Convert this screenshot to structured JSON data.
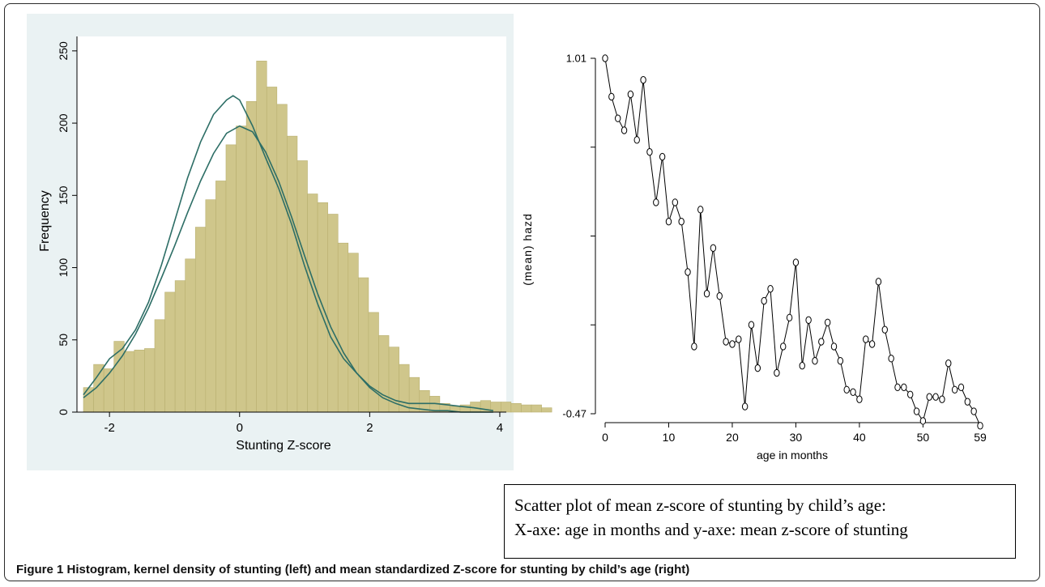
{
  "chart_data": [
    {
      "type": "bar",
      "xlabel": "Stunting Z-score",
      "ylabel": "Frequency",
      "xlim": [
        -2.5,
        4.1
      ],
      "ylim": [
        0,
        260
      ],
      "xticks": [
        "-2",
        "0",
        "2",
        "4"
      ],
      "yticks": [
        "0",
        "50",
        "100",
        "150",
        "200",
        "250"
      ],
      "bin_width": 0.1565,
      "bin_start": -2.4,
      "values": [
        17,
        33,
        30,
        49,
        42,
        43,
        44,
        64,
        83,
        91,
        106,
        128,
        147,
        160,
        185,
        198,
        215,
        243,
        225,
        213,
        191,
        174,
        151,
        145,
        137,
        117,
        110,
        93,
        69,
        53,
        45,
        33,
        24,
        15,
        11,
        6,
        4,
        5,
        7,
        8,
        7,
        7,
        6,
        5,
        5,
        3
      ],
      "series": [
        {
          "x": [
            -2.4,
            -2.2,
            -2.0,
            -1.8,
            -1.6,
            -1.4,
            -1.2,
            -1.0,
            -0.8,
            -0.6,
            -0.4,
            -0.2,
            -0.1,
            0.0,
            0.2,
            0.4,
            0.6,
            0.8,
            1.0,
            1.2,
            1.4,
            1.6,
            1.8,
            2.0,
            2.2,
            2.4,
            2.6,
            2.8,
            3.0,
            3.2,
            3.4,
            3.6,
            3.9
          ],
          "y": [
            12,
            24,
            37,
            44,
            57,
            76,
            102,
            132,
            162,
            187,
            206,
            216,
            219,
            216,
            198,
            176,
            155,
            130,
            101,
            75,
            52,
            37,
            27,
            18,
            12,
            8,
            6,
            6,
            6,
            5,
            4,
            3,
            1
          ]
        },
        {
          "x": [
            -2.4,
            -2.2,
            -2.0,
            -1.8,
            -1.6,
            -1.4,
            -1.2,
            -1.0,
            -0.8,
            -0.6,
            -0.4,
            -0.2,
            0.0,
            0.2,
            0.4,
            0.6,
            0.8,
            1.0,
            1.2,
            1.4,
            1.6,
            1.8,
            2.0,
            2.2,
            2.4,
            2.6,
            2.8,
            3.0,
            3.2,
            3.4,
            3.6,
            3.9
          ],
          "y": [
            10,
            17,
            27,
            39,
            54,
            72,
            93,
            115,
            138,
            160,
            179,
            193,
            198,
            194,
            180,
            160,
            135,
            108,
            82,
            59,
            41,
            27,
            17,
            10,
            6,
            3,
            2,
            1,
            1,
            0,
            0,
            0
          ]
        }
      ],
      "colors": {
        "bar_fill": "#cfc68b",
        "bar_stroke": "#b9b070",
        "curve": "#2d6e66",
        "plot_bg": "#eaf2f3"
      }
    },
    {
      "type": "line",
      "xlabel": "age in months",
      "ylabel": "(mean) hazd",
      "xticks": [
        "0",
        "10",
        "20",
        "30",
        "40",
        "50",
        "59"
      ],
      "yticks": [
        "-0.47",
        "1.01"
      ],
      "ylim": [
        -0.47,
        1.01
      ],
      "x": [
        0,
        1,
        2,
        3,
        4,
        5,
        6,
        7,
        8,
        9,
        10,
        11,
        12,
        13,
        14,
        15,
        16,
        17,
        18,
        19,
        20,
        21,
        22,
        23,
        24,
        25,
        26,
        27,
        28,
        29,
        30,
        31,
        32,
        33,
        34,
        35,
        36,
        37,
        38,
        39,
        40,
        41,
        42,
        43,
        44,
        45,
        46,
        47,
        48,
        49,
        50,
        51,
        52,
        53,
        54,
        55,
        56,
        57,
        58,
        59
      ],
      "y": [
        1.01,
        0.85,
        0.76,
        0.71,
        0.86,
        0.67,
        0.92,
        0.62,
        0.41,
        0.6,
        0.33,
        0.41,
        0.33,
        0.12,
        -0.19,
        0.38,
        0.03,
        0.22,
        0.02,
        -0.17,
        -0.18,
        -0.16,
        -0.44,
        -0.1,
        -0.28,
        0.0,
        0.05,
        -0.3,
        -0.19,
        -0.07,
        0.16,
        -0.27,
        -0.08,
        -0.25,
        -0.17,
        -0.09,
        -0.19,
        -0.25,
        -0.37,
        -0.38,
        -0.41,
        -0.16,
        -0.18,
        0.08,
        -0.12,
        -0.24,
        -0.36,
        -0.36,
        -0.39,
        -0.46,
        -0.5,
        -0.4,
        -0.4,
        -0.41,
        -0.26,
        -0.37,
        -0.36,
        -0.42,
        -0.46,
        -0.52
      ],
      "colors": {
        "line": "#000000",
        "marker": "#000000"
      }
    }
  ],
  "note": {
    "line1": "Scatter plot of mean z-score of stunting by child’s age:",
    "line2": "X-axe: age in months and y-axe: mean z-score of stunting"
  },
  "caption": {
    "label": "Figure 1",
    "text": " Histogram, kernel density of stunting (left) and mean standardized Z-score for stunting by child’s age (right)"
  }
}
